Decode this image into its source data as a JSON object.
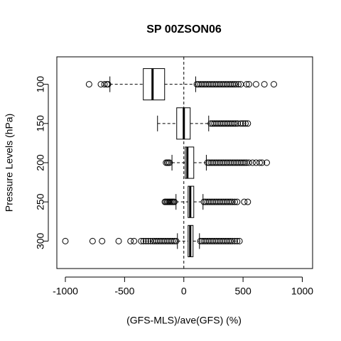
{
  "chart_data": {
    "type": "boxplot",
    "orientation": "horizontal",
    "title": "SP 00ZSON06",
    "x_label": "(GFS-MLS)/ave(GFS) (%)",
    "y_label": "Pressure Levels (hPa)",
    "categories": [
      "100",
      "150",
      "200",
      "250",
      "300"
    ],
    "xlim": [
      -1072,
      1087
    ],
    "xticks": [
      -1000,
      -500,
      0,
      500,
      1000
    ],
    "reference_line": 0,
    "boxes": [
      {
        "whisker_low": -624,
        "q1": -342,
        "median": -264,
        "q3": -162,
        "whisker_high": 100,
        "outliers": [
          -800,
          -700,
          -670,
          -650,
          -640,
          110,
          125,
          140,
          155,
          170,
          185,
          200,
          215,
          230,
          245,
          260,
          275,
          290,
          305,
          320,
          335,
          350,
          365,
          380,
          395,
          410,
          425,
          440,
          460,
          480,
          530,
          550,
          610,
          680,
          760
        ]
      },
      {
        "whisker_low": -222,
        "q1": -60,
        "median": 0,
        "q3": 54,
        "whisker_high": 210,
        "outliers": [
          228,
          243,
          258,
          273,
          288,
          303,
          318,
          333,
          348,
          363,
          378,
          393,
          408,
          423,
          438,
          455,
          480,
          500,
          520,
          540
        ]
      },
      {
        "whisker_low": -100,
        "q1": 12,
        "median": 30,
        "q3": 84,
        "whisker_high": 190,
        "outliers": [
          -150,
          -140,
          -130,
          -120,
          200,
          215,
          230,
          245,
          260,
          275,
          290,
          305,
          320,
          335,
          350,
          365,
          380,
          395,
          410,
          425,
          440,
          455,
          470,
          485,
          500,
          515,
          530,
          550,
          580,
          610,
          640,
          660,
          700
        ]
      },
      {
        "whisker_low": -66,
        "q1": 36,
        "median": 54,
        "q3": 84,
        "whisker_high": 162,
        "outliers": [
          -160,
          -150,
          -140,
          -130,
          -120,
          -110,
          -100,
          -90,
          -80,
          170,
          185,
          200,
          215,
          230,
          245,
          260,
          275,
          290,
          305,
          320,
          335,
          350,
          365,
          380,
          395,
          410,
          430,
          450,
          510,
          540
        ]
      },
      {
        "whisker_low": -54,
        "q1": 36,
        "median": 54,
        "q3": 78,
        "whisker_high": 132,
        "outliers": [
          -1000,
          -770,
          -690,
          -550,
          -450,
          -420,
          -360,
          -340,
          -320,
          -300,
          -280,
          -260,
          -245,
          -230,
          -215,
          -200,
          -185,
          -170,
          -155,
          -140,
          -125,
          -110,
          -95,
          -80,
          -65,
          140,
          155,
          170,
          185,
          200,
          215,
          230,
          245,
          260,
          275,
          290,
          305,
          320,
          335,
          350,
          365,
          380,
          395,
          410,
          430,
          450,
          470
        ]
      }
    ]
  }
}
